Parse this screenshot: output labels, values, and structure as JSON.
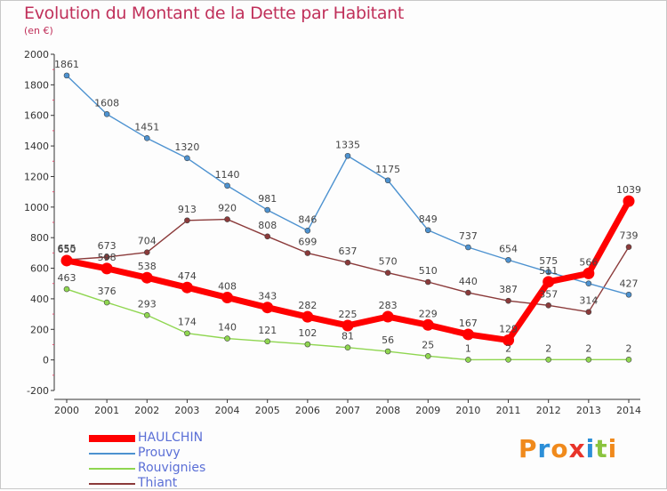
{
  "title": "Evolution du Montant de la Dette par Habitant",
  "unit": "(en €)",
  "brand": {
    "letters": [
      "P",
      "r",
      "o",
      "x",
      "i",
      "t",
      "i"
    ],
    "colors": [
      "#f08a1c",
      "#2c8fd8",
      "#f08a1c",
      "#e8342a",
      "#2c8fd8",
      "#8ac43f",
      "#f08a1c"
    ]
  },
  "chart_data": {
    "type": "line",
    "title": "Evolution du Montant de la Dette par Habitant",
    "ylabel": "(en €)",
    "xlabel": "",
    "x": [
      "2000",
      "2001",
      "2002",
      "2003",
      "2004",
      "2005",
      "2006",
      "2007",
      "2008",
      "2009",
      "2010",
      "2011",
      "2012",
      "2013",
      "2014"
    ],
    "ylim": [
      -200,
      2000
    ],
    "yticks": [
      "-200",
      "0",
      "200",
      "400",
      "600",
      "800",
      "1000",
      "1200",
      "1400",
      "1600",
      "1800",
      "2000"
    ],
    "grid": false,
    "legend": "bottom-left",
    "series": [
      {
        "name": "Rouvignies",
        "color": "#8fd650",
        "values": [
          463,
          376,
          293,
          174,
          140,
          121,
          102,
          81,
          56,
          25,
          1,
          2,
          2,
          2,
          2
        ],
        "labels": [
          "463",
          "376",
          "293",
          "174",
          "140",
          "121",
          "102",
          "81",
          "56",
          "25",
          "1",
          "2",
          "2",
          "2",
          "2"
        ]
      },
      {
        "name": "Thiant",
        "color": "#8b3a3a",
        "values": [
          655,
          673,
          704,
          913,
          920,
          808,
          699,
          637,
          570,
          510,
          440,
          387,
          357,
          314,
          739
        ],
        "labels": [
          "655",
          "673",
          "704",
          "913",
          "920",
          "808",
          "699",
          "637",
          "570",
          "510",
          "440",
          "387",
          "357",
          "314",
          "739"
        ]
      },
      {
        "name": "Prouvy",
        "color": "#4d92d0",
        "values": [
          1861,
          1608,
          1451,
          1320,
          1140,
          981,
          846,
          1335,
          1175,
          849,
          737,
          654,
          575,
          500,
          427
        ],
        "labels": [
          "1861",
          "1608",
          "1451",
          "1320",
          "1140",
          "981",
          "846",
          "1335",
          "1175",
          "849",
          "737",
          "654",
          "575",
          "",
          "427"
        ]
      },
      {
        "name": "HAULCHIN",
        "color": "#ff0000",
        "values": [
          650,
          598,
          538,
          474,
          408,
          343,
          282,
          225,
          283,
          229,
          167,
          129,
          511,
          566,
          1039
        ],
        "labels": [
          "650",
          "598",
          "538",
          "474",
          "408",
          "343",
          "282",
          "225",
          "283",
          "229",
          "167",
          "129",
          "511",
          "566",
          "1039"
        ]
      }
    ],
    "legend_order": [
      "HAULCHIN",
      "Prouvy",
      "Rouvignies",
      "Thiant"
    ]
  }
}
